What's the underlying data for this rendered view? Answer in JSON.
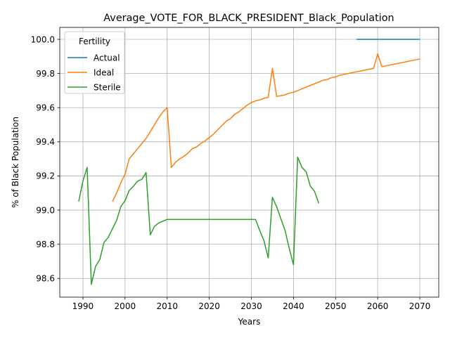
{
  "chart_data": {
    "type": "line",
    "title": "Average_VOTE_FOR_BLACK_PRESIDENT_Black_Population",
    "xlabel": "Years",
    "ylabel": "% of Black Population",
    "xlim": [
      1984.5,
      2074.5
    ],
    "ylim": [
      98.49,
      100.07
    ],
    "x_ticks": [
      1990,
      2000,
      2010,
      2020,
      2030,
      2040,
      2050,
      2060,
      2070
    ],
    "y_ticks": [
      98.6,
      98.8,
      99.0,
      99.2,
      99.4,
      99.6,
      99.8,
      100.0
    ],
    "y_tick_labels": [
      "98.6",
      "98.8",
      "99.0",
      "99.2",
      "99.4",
      "99.6",
      "99.8",
      "100.0"
    ],
    "grid": true,
    "legend": {
      "title": "Fertility",
      "placement": "top-left"
    },
    "series": [
      {
        "name": "Actual",
        "color": "#1f77b4",
        "points": [
          [
            2055,
            100.0
          ],
          [
            2070,
            100.0
          ]
        ]
      },
      {
        "name": "Ideal",
        "color": "#ff7f0e",
        "points": [
          [
            1997,
            99.05
          ],
          [
            1998,
            99.1
          ],
          [
            1999,
            99.16
          ],
          [
            2000,
            99.21
          ],
          [
            2001,
            99.3
          ],
          [
            2002,
            99.33
          ],
          [
            2003,
            99.36
          ],
          [
            2004,
            99.39
          ],
          [
            2005,
            99.42
          ],
          [
            2006,
            99.46
          ],
          [
            2007,
            99.5
          ],
          [
            2008,
            99.54
          ],
          [
            2009,
            99.575
          ],
          [
            2010,
            99.6
          ],
          [
            2011,
            99.25
          ],
          [
            2012,
            99.28
          ],
          [
            2013,
            99.3
          ],
          [
            2014,
            99.315
          ],
          [
            2015,
            99.335
          ],
          [
            2016,
            99.36
          ],
          [
            2017,
            99.37
          ],
          [
            2018,
            99.39
          ],
          [
            2019,
            99.405
          ],
          [
            2020,
            99.425
          ],
          [
            2021,
            99.445
          ],
          [
            2022,
            99.47
          ],
          [
            2023,
            99.495
          ],
          [
            2024,
            99.52
          ],
          [
            2025,
            99.535
          ],
          [
            2026,
            99.56
          ],
          [
            2027,
            99.575
          ],
          [
            2028,
            99.595
          ],
          [
            2029,
            99.615
          ],
          [
            2030,
            99.63
          ],
          [
            2031,
            99.64
          ],
          [
            2032,
            99.645
          ],
          [
            2033,
            99.655
          ],
          [
            2034,
            99.66
          ],
          [
            2035,
            99.83
          ],
          [
            2036,
            99.665
          ],
          [
            2037,
            99.67
          ],
          [
            2038,
            99.675
          ],
          [
            2039,
            99.685
          ],
          [
            2040,
            99.69
          ],
          [
            2041,
            99.7
          ],
          [
            2042,
            99.71
          ],
          [
            2043,
            99.72
          ],
          [
            2044,
            99.73
          ],
          [
            2045,
            99.74
          ],
          [
            2046,
            99.75
          ],
          [
            2047,
            99.76
          ],
          [
            2048,
            99.765
          ],
          [
            2049,
            99.775
          ],
          [
            2050,
            99.78
          ],
          [
            2051,
            99.79
          ],
          [
            2052,
            99.795
          ],
          [
            2053,
            99.8
          ],
          [
            2054,
            99.805
          ],
          [
            2055,
            99.81
          ],
          [
            2056,
            99.815
          ],
          [
            2057,
            99.82
          ],
          [
            2058,
            99.825
          ],
          [
            2059,
            99.83
          ],
          [
            2060,
            99.915
          ],
          [
            2061,
            99.84
          ],
          [
            2062,
            99.845
          ],
          [
            2063,
            99.85
          ],
          [
            2064,
            99.855
          ],
          [
            2065,
            99.86
          ],
          [
            2066,
            99.865
          ],
          [
            2067,
            99.87
          ],
          [
            2068,
            99.875
          ],
          [
            2069,
            99.88
          ],
          [
            2070,
            99.885
          ]
        ]
      },
      {
        "name": "Sterile",
        "color": "#2ca02c",
        "points": [
          [
            1989,
            99.05
          ],
          [
            1990,
            99.17
          ],
          [
            1991,
            99.25
          ],
          [
            1992,
            98.565
          ],
          [
            1993,
            98.67
          ],
          [
            1994,
            98.71
          ],
          [
            1995,
            98.81
          ],
          [
            1996,
            98.84
          ],
          [
            1997,
            98.89
          ],
          [
            1998,
            98.94
          ],
          [
            1999,
            99.02
          ],
          [
            2000,
            99.055
          ],
          [
            2001,
            99.115
          ],
          [
            2002,
            99.14
          ],
          [
            2003,
            99.17
          ],
          [
            2004,
            99.18
          ],
          [
            2005,
            99.22
          ],
          [
            2006,
            98.855
          ],
          [
            2007,
            98.905
          ],
          [
            2008,
            98.925
          ],
          [
            2009,
            98.935
          ],
          [
            2010,
            98.945
          ],
          [
            2011,
            98.945
          ],
          [
            2012,
            98.945
          ],
          [
            2013,
            98.945
          ],
          [
            2014,
            98.945
          ],
          [
            2015,
            98.945
          ],
          [
            2016,
            98.945
          ],
          [
            2017,
            98.945
          ],
          [
            2018,
            98.945
          ],
          [
            2019,
            98.945
          ],
          [
            2020,
            98.945
          ],
          [
            2021,
            98.945
          ],
          [
            2022,
            98.945
          ],
          [
            2023,
            98.945
          ],
          [
            2024,
            98.945
          ],
          [
            2025,
            98.945
          ],
          [
            2026,
            98.945
          ],
          [
            2027,
            98.945
          ],
          [
            2028,
            98.945
          ],
          [
            2029,
            98.945
          ],
          [
            2030,
            98.945
          ],
          [
            2031,
            98.945
          ],
          [
            2032,
            98.88
          ],
          [
            2033,
            98.82
          ],
          [
            2034,
            98.72
          ],
          [
            2035,
            99.075
          ],
          [
            2036,
            99.02
          ],
          [
            2037,
            98.95
          ],
          [
            2038,
            98.88
          ],
          [
            2039,
            98.775
          ],
          [
            2040,
            98.68
          ],
          [
            2041,
            99.31
          ],
          [
            2042,
            99.25
          ],
          [
            2043,
            99.225
          ],
          [
            2044,
            99.14
          ],
          [
            2045,
            99.11
          ],
          [
            2046,
            99.04
          ]
        ]
      }
    ]
  }
}
